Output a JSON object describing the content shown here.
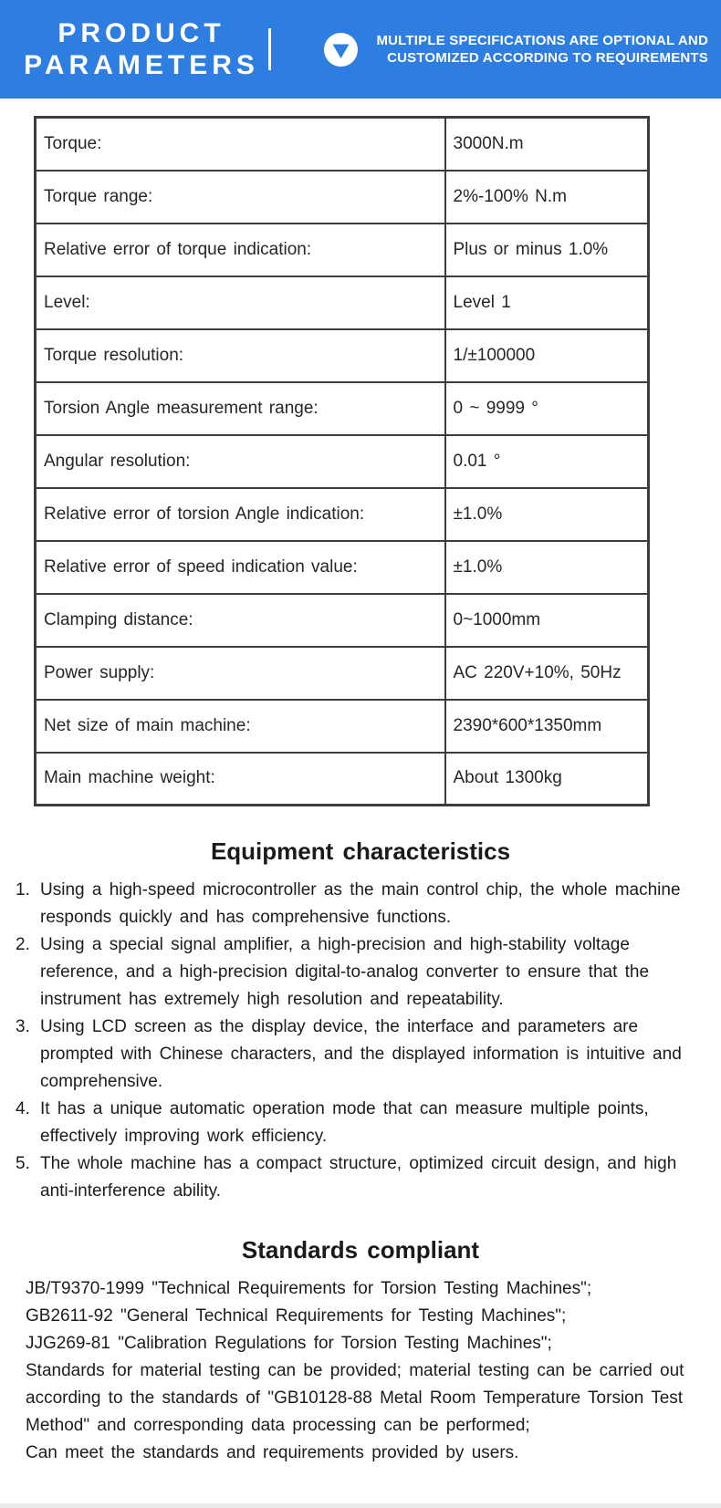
{
  "theme": {
    "accent_blue": "#2e7de1",
    "text_color": "#1c1c1c",
    "table_border_color": "#3d3d3d"
  },
  "header": {
    "title_line1": "PRODUCT",
    "title_line2": "PARAMETERS",
    "badge_icon": "triangle-down-circle-icon",
    "badge_line1": "MULTIPLE SPECIFICATIONS ARE OPTIONAL AND",
    "badge_line2": "CUSTOMIZED ACCORDING TO REQUIREMENTS"
  },
  "spec_table": {
    "rows": [
      {
        "label": "Torque:",
        "value": "3000N.m"
      },
      {
        "label": "Torque range:",
        "value": "2%-100% N.m"
      },
      {
        "label": "Relative error of torque indication:",
        "value": "Plus or minus 1.0%"
      },
      {
        "label": "Level:",
        "value": "Level 1"
      },
      {
        "label": "Torque resolution:",
        "value": "1/±100000"
      },
      {
        "label": "Torsion Angle measurement range:",
        "value": "0 ~ 9999 °"
      },
      {
        "label": "Angular resolution:",
        "value": "0.01 °"
      },
      {
        "label": "Relative error of torsion Angle indication:",
        "value": "±1.0%"
      },
      {
        "label": "Relative error of speed indication value:",
        "value": "±1.0%"
      },
      {
        "label": "Clamping distance:",
        "value": "0~1000mm"
      },
      {
        "label": "Power supply:",
        "value": "AC 220V+10%, 50Hz"
      },
      {
        "label": "Net size of main machine:",
        "value": "2390*600*1350mm"
      },
      {
        "label": "Main machine weight:",
        "value": "About 1300kg"
      }
    ]
  },
  "characteristics": {
    "heading": "Equipment characteristics",
    "items": [
      {
        "num": "1.",
        "text": "Using a high-speed microcontroller as the main control chip, the whole machine responds quickly and has comprehensive functions."
      },
      {
        "num": "2.",
        "text": "Using a special signal amplifier, a high-precision and high-stability voltage reference, and a high-precision digital-to-analog converter to ensure that the instrument has extremely high resolution and repeatability."
      },
      {
        "num": "3.",
        "text": "Using LCD screen as the display device, the interface and parameters are prompted with Chinese characters, and the displayed information is intuitive and comprehensive."
      },
      {
        "num": "4.",
        "text": "It has a unique automatic operation mode that can measure multiple points, effectively improving work efficiency."
      },
      {
        "num": "5.",
        "text": "The whole machine has a compact structure, optimized circuit design, and high anti-interference ability."
      }
    ]
  },
  "standards": {
    "heading": "Standards compliant",
    "statements": [
      "JB/T9370-1999 \"Technical Requirements for Torsion Testing Machines\";",
      "GB2611-92 \"General Technical Requirements for Testing Machines\";",
      "JJG269-81 \"Calibration Regulations for Torsion Testing Machines\";",
      "Standards for material testing can be provided; material testing can be carried out according to the standards of \"GB10128-88 Metal Room Temperature Torsion Test Method\" and corresponding data processing can be performed;",
      "Can meet the standards and requirements provided by users."
    ]
  }
}
